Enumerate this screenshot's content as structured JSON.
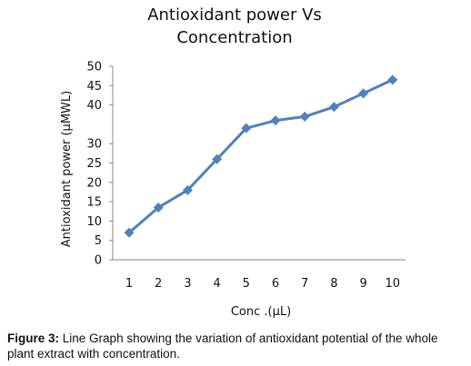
{
  "chart_data": {
    "type": "line",
    "title": "Antioxidant power Vs Concentration",
    "xlabel": "Conc .(μL)",
    "ylabel": "Antioxidant power (μMWL)",
    "x": [
      1,
      2,
      3,
      4,
      5,
      6,
      7,
      8,
      9,
      10
    ],
    "y_ticks": [
      0,
      5,
      10,
      15,
      20,
      25,
      30,
      40,
      45,
      50
    ],
    "series": [
      {
        "name": "",
        "values": [
          7,
          13.5,
          18,
          26,
          34,
          36,
          37,
          39.5,
          43,
          46.5
        ]
      }
    ],
    "grid": false,
    "line_color": "#4f81bd",
    "marker": "diamond"
  },
  "caption": {
    "label": "Figure 3:",
    "text": "Line Graph showing the variation of antioxidant potential of the whole plant extract with concentration."
  }
}
